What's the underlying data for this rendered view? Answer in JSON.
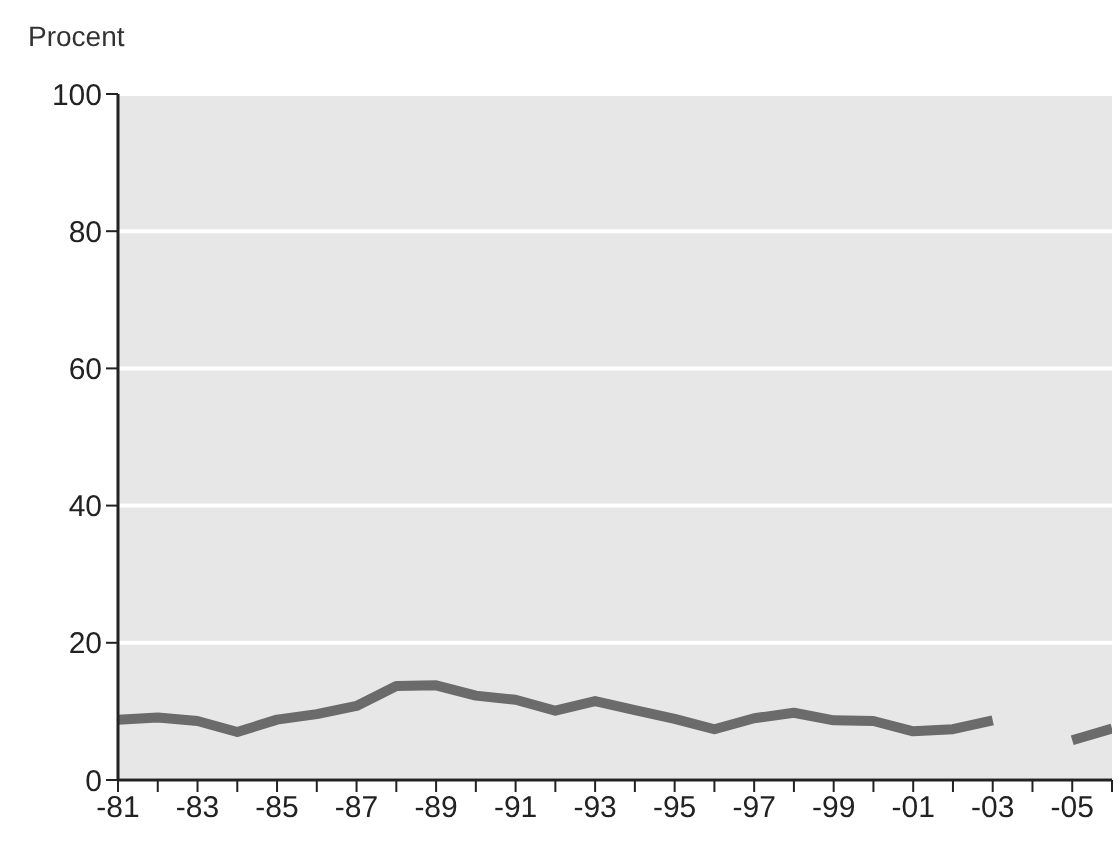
{
  "chart_data": {
    "type": "line",
    "ylabel": "Procent",
    "categories": [
      "-81",
      null,
      "-83",
      null,
      "-85",
      null,
      "-87",
      null,
      "-89",
      null,
      "-91",
      null,
      "-93",
      null,
      "-95",
      null,
      "-97",
      null,
      "-99",
      null,
      "-01",
      null,
      "-03",
      null,
      "-05",
      null
    ],
    "series": [
      {
        "color": "#6b6b6b",
        "values": [
          8.8,
          9.1,
          8.6,
          7.0,
          8.8,
          9.6,
          10.8,
          13.7,
          13.8,
          12.3,
          11.7,
          10.1,
          11.5,
          10.2,
          8.9,
          7.4,
          9.0,
          9.8,
          8.7,
          8.6,
          7.1,
          7.4,
          8.7,
          null,
          5.8,
          7.5
        ]
      }
    ],
    "ylim": [
      0,
      100
    ],
    "yticks": [
      0,
      20,
      40,
      60,
      80,
      100
    ],
    "grid": "y",
    "marker": "none",
    "line_style": "solid"
  }
}
